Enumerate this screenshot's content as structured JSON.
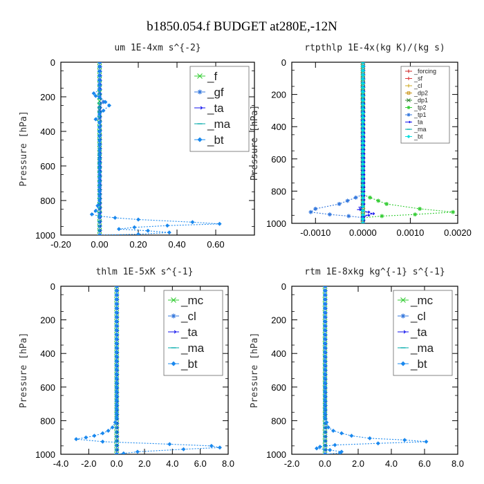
{
  "figure_title": "b1850.054.f  BUDGET at280E,-12N",
  "chart_data": [
    {
      "type": "line",
      "title": "um   1E-4xm s^{-2}",
      "ylabel": "Pressure [hPa]",
      "xlim": [
        -0.2,
        0.8
      ],
      "ylim": [
        1000,
        0
      ],
      "xticks": [
        -0.2,
        0.0,
        0.2,
        0.4,
        0.6
      ],
      "xtick_labels": [
        "-0.20",
        "0.00",
        "0.20",
        "0.40",
        "0.60"
      ],
      "yticks": [
        0,
        200,
        400,
        600,
        800,
        1000
      ],
      "legend": "top-right",
      "series": [
        {
          "name": "_f",
          "color": "#33cc33",
          "marker": "x",
          "points": [
            [
              0.0,
              0
            ],
            [
              0.0,
              100
            ],
            [
              0.0,
              200
            ],
            [
              0.0,
              300
            ],
            [
              0.0,
              400
            ],
            [
              0.0,
              500
            ],
            [
              0.0,
              600
            ],
            [
              0.0,
              700
            ],
            [
              0.0,
              800
            ],
            [
              0.0,
              900
            ],
            [
              0.0,
              1000
            ]
          ]
        },
        {
          "name": "_gf",
          "color": "#3377dd",
          "marker": "star",
          "points": [
            [
              0.0,
              0
            ],
            [
              0.0,
              150
            ],
            [
              0.0,
              180
            ],
            [
              0.0,
              200
            ],
            [
              0.02,
              230
            ],
            [
              0.0,
              260
            ],
            [
              0.0,
              300
            ],
            [
              0.0,
              600
            ],
            [
              0.0,
              850
            ],
            [
              0.0,
              1000
            ]
          ]
        },
        {
          "name": "_ta",
          "color": "#1111ee",
          "marker": "arrow",
          "points": [
            [
              0.0,
              0
            ],
            [
              0.0,
              1000
            ]
          ]
        },
        {
          "name": "_ma",
          "color": "#00aaaa",
          "marker": "dash",
          "points": [
            [
              0.0,
              0
            ],
            [
              0.0,
              1000
            ]
          ]
        },
        {
          "name": "_bt",
          "color": "#1a88ee",
          "marker": "diamond",
          "points": [
            [
              0.0,
              0
            ],
            [
              0.0,
              160
            ],
            [
              -0.03,
              180
            ],
            [
              -0.02,
              195
            ],
            [
              0.0,
              200
            ],
            [
              0.03,
              230
            ],
            [
              0.05,
              250
            ],
            [
              0.02,
              280
            ],
            [
              0.0,
              300
            ],
            [
              -0.02,
              330
            ],
            [
              0.0,
              350
            ],
            [
              0.0,
              800
            ],
            [
              -0.02,
              860
            ],
            [
              -0.04,
              880
            ],
            [
              0.0,
              890
            ],
            [
              0.08,
              900
            ],
            [
              0.2,
              910
            ],
            [
              0.48,
              925
            ],
            [
              0.62,
              935
            ],
            [
              0.35,
              945
            ],
            [
              0.18,
              955
            ],
            [
              0.1,
              965
            ],
            [
              0.25,
              975
            ],
            [
              0.36,
              985
            ],
            [
              0.2,
              995
            ],
            [
              0.0,
              1000
            ]
          ]
        }
      ]
    },
    {
      "type": "line",
      "title": "rtpthlp   1E-4x(kg K)/(kg s)",
      "ylabel": "Pressure [hPa]",
      "xlim": [
        -0.0015,
        0.002
      ],
      "ylim": [
        1000,
        0
      ],
      "xticks": [
        -0.001,
        0.0,
        0.001,
        0.002
      ],
      "xtick_labels": [
        "-0.0010",
        "0.0000",
        "0.0010",
        "0.0020"
      ],
      "yticks": [
        0,
        200,
        400,
        600,
        800,
        1000
      ],
      "legend": "top-right",
      "series": [
        {
          "name": "_forcing",
          "color": "#cc2222",
          "marker": "plus",
          "points": [
            [
              0.0,
              0
            ],
            [
              0.0,
              1000
            ]
          ]
        },
        {
          "name": "_sf",
          "color": "#dd3333",
          "marker": "plus",
          "points": [
            [
              0.0,
              0
            ],
            [
              0.0,
              1000
            ]
          ]
        },
        {
          "name": "_cl",
          "color": "#ccaa22",
          "marker": "plus",
          "points": [
            [
              0.0,
              0
            ],
            [
              0.0,
              1000
            ]
          ]
        },
        {
          "name": "_dp2",
          "color": "#cc9922",
          "marker": "square",
          "points": [
            [
              0.0,
              0
            ],
            [
              0.0,
              1000
            ]
          ]
        },
        {
          "name": "_dp1",
          "color": "#338833",
          "marker": "x",
          "points": [
            [
              0.0,
              0
            ],
            [
              0.0,
              1000
            ]
          ]
        },
        {
          "name": "_tp2",
          "color": "#33cc33",
          "marker": "star",
          "points": [
            [
              0.0,
              0
            ],
            [
              0.0,
              820
            ],
            [
              0.00015,
              840
            ],
            [
              0.0005,
              880
            ],
            [
              0.0012,
              910
            ],
            [
              0.0019,
              930
            ],
            [
              0.0011,
              945
            ],
            [
              0.0004,
              955
            ],
            [
              0.0,
              965
            ],
            [
              0.0,
              1000
            ]
          ]
        },
        {
          "name": "_tp1",
          "color": "#3377dd",
          "marker": "star",
          "points": [
            [
              0.0,
              0
            ],
            [
              0.0,
              820
            ],
            [
              -0.00015,
              840
            ],
            [
              -0.0005,
              880
            ],
            [
              -0.001,
              910
            ],
            [
              -0.0011,
              930
            ],
            [
              -0.0007,
              945
            ],
            [
              -0.0003,
              955
            ],
            [
              0.0,
              965
            ],
            [
              0.0,
              1000
            ]
          ]
        },
        {
          "name": "_ta",
          "color": "#1111ee",
          "marker": "arrow",
          "points": [
            [
              0.0,
              0
            ],
            [
              0.0,
              880
            ],
            [
              -5e-05,
              900
            ],
            [
              -8e-05,
              915
            ],
            [
              0.0001,
              930
            ],
            [
              0.0002,
              940
            ],
            [
              0.0001,
              950
            ],
            [
              0.0,
              960
            ],
            [
              0.0,
              1000
            ]
          ]
        },
        {
          "name": "_ma",
          "color": "#00aaaa",
          "marker": "dash",
          "points": [
            [
              0.0,
              0
            ],
            [
              0.0,
              1000
            ]
          ]
        },
        {
          "name": "_bt",
          "color": "#00dddd",
          "marker": "diamond",
          "points": [
            [
              0.0,
              0
            ],
            [
              0.0,
              1000
            ]
          ]
        }
      ]
    },
    {
      "type": "line",
      "title": "thlm   1E-5xK s^{-1}",
      "ylabel": "Pressure [hPa]",
      "xlim": [
        -4.0,
        8.0
      ],
      "ylim": [
        1000,
        0
      ],
      "xticks": [
        -4.0,
        -2.0,
        0.0,
        2.0,
        4.0,
        6.0,
        8.0
      ],
      "xtick_labels": [
        "-4.0",
        "-2.0",
        "0.0",
        "2.0",
        "4.0",
        "6.0",
        "8.0"
      ],
      "yticks": [
        0,
        200,
        400,
        600,
        800,
        1000
      ],
      "legend": "top-right",
      "series": [
        {
          "name": "_mc",
          "color": "#33cc33",
          "marker": "x",
          "points": [
            [
              0.0,
              0
            ],
            [
              0.0,
              1000
            ]
          ]
        },
        {
          "name": "_cl",
          "color": "#3377dd",
          "marker": "star",
          "points": [
            [
              0.0,
              0
            ],
            [
              0.0,
              1000
            ]
          ]
        },
        {
          "name": "_ta",
          "color": "#1111ee",
          "marker": "arrow",
          "points": [
            [
              0.0,
              0
            ],
            [
              0.0,
              1000
            ]
          ]
        },
        {
          "name": "_ma",
          "color": "#00aaaa",
          "marker": "dash",
          "points": [
            [
              0.0,
              0
            ],
            [
              0.0,
              1000
            ]
          ]
        },
        {
          "name": "_bt",
          "color": "#1a88ee",
          "marker": "diamond",
          "points": [
            [
              0.0,
              0
            ],
            [
              0.0,
              780
            ],
            [
              -0.1,
              810
            ],
            [
              -0.3,
              840
            ],
            [
              -0.6,
              860
            ],
            [
              -1.0,
              875
            ],
            [
              -1.6,
              890
            ],
            [
              -2.2,
              900
            ],
            [
              -2.9,
              910
            ],
            [
              -1.0,
              925
            ],
            [
              3.8,
              940
            ],
            [
              6.8,
              950
            ],
            [
              7.4,
              960
            ],
            [
              4.8,
              970
            ],
            [
              1.5,
              985
            ],
            [
              0.5,
              995
            ],
            [
              0.0,
              1000
            ]
          ]
        }
      ]
    },
    {
      "type": "line",
      "title": "rtm   1E-8xkg kg^{-1} s^{-1}",
      "ylabel": "Pressure [hPa]",
      "xlim": [
        -2.0,
        8.0
      ],
      "ylim": [
        1000,
        0
      ],
      "xticks": [
        -2.0,
        0.0,
        2.0,
        4.0,
        6.0,
        8.0
      ],
      "xtick_labels": [
        "-2.0",
        "0.0",
        "2.0",
        "4.0",
        "6.0",
        "8.0"
      ],
      "yticks": [
        0,
        200,
        400,
        600,
        800,
        1000
      ],
      "legend": "top-right",
      "series": [
        {
          "name": "_mc",
          "color": "#33cc33",
          "marker": "x",
          "points": [
            [
              0.0,
              0
            ],
            [
              0.0,
              1000
            ]
          ]
        },
        {
          "name": "_cl",
          "color": "#3377dd",
          "marker": "star",
          "points": [
            [
              0.0,
              0
            ],
            [
              0.0,
              1000
            ]
          ]
        },
        {
          "name": "_ta",
          "color": "#1111ee",
          "marker": "arrow",
          "points": [
            [
              0.0,
              0
            ],
            [
              0.0,
              1000
            ]
          ]
        },
        {
          "name": "_ma",
          "color": "#00aaaa",
          "marker": "dash",
          "points": [
            [
              0.0,
              0
            ],
            [
              0.0,
              1000
            ]
          ]
        },
        {
          "name": "_bt",
          "color": "#1a88ee",
          "marker": "diamond",
          "points": [
            [
              0.0,
              0
            ],
            [
              0.0,
              780
            ],
            [
              0.1,
              810
            ],
            [
              0.2,
              840
            ],
            [
              0.5,
              860
            ],
            [
              1.0,
              875
            ],
            [
              1.6,
              890
            ],
            [
              2.7,
              905
            ],
            [
              4.8,
              915
            ],
            [
              6.1,
              925
            ],
            [
              3.2,
              935
            ],
            [
              0.6,
              945
            ],
            [
              -0.3,
              955
            ],
            [
              -0.5,
              965
            ],
            [
              0.3,
              975
            ],
            [
              1.0,
              985
            ],
            [
              0.9,
              992
            ],
            [
              0.0,
              1000
            ]
          ]
        }
      ]
    }
  ]
}
